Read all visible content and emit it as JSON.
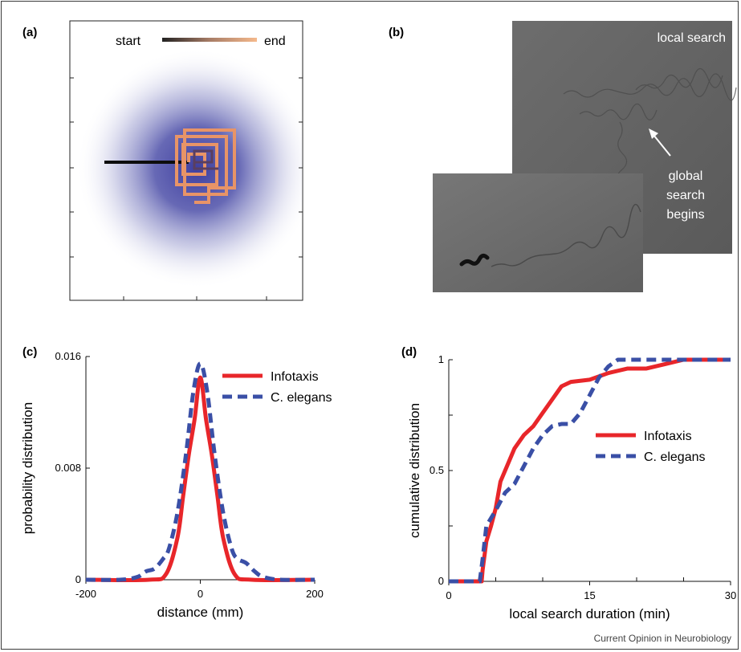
{
  "panels": {
    "a": {
      "label": "(a)",
      "legend_start": "start",
      "legend_end": "end"
    },
    "b": {
      "label": "(b)",
      "local_search_label": "local search",
      "global_search_lines": [
        "global",
        "search",
        "begins"
      ]
    },
    "c": {
      "label": "(c)"
    },
    "d": {
      "label": "(d)"
    }
  },
  "colors": {
    "infotaxis": "#e8262a",
    "c_elegans": "#3a4fa6",
    "odor_blob": "#4d4fa8",
    "trajectory_end": "#f5b98c",
    "trajectory_start": "#111111"
  },
  "chart_data": [
    {
      "type": "line",
      "panel": "c",
      "xlabel": "distance (mm)",
      "ylabel": "probability distribution",
      "xlim": [
        -200,
        200
      ],
      "ylim": [
        0,
        0.016
      ],
      "x_ticks": [
        "-200",
        "0",
        "200"
      ],
      "y_ticks": [
        "0",
        "0.008",
        "0.016"
      ],
      "legend": "top-right",
      "series": [
        {
          "name": "Infotaxis",
          "style": "solid",
          "x": [
            -200,
            -90,
            -60,
            -40,
            -30,
            -20,
            -10,
            0,
            10,
            20,
            30,
            40,
            60,
            90,
            200
          ],
          "y": [
            0,
            0,
            0.0004,
            0.003,
            0.006,
            0.009,
            0.0115,
            0.0145,
            0.0115,
            0.009,
            0.006,
            0.003,
            0.0004,
            0,
            0
          ]
        },
        {
          "name": "C. elegans",
          "style": "dashed",
          "x": [
            -200,
            -140,
            -110,
            -95,
            -80,
            -65,
            -55,
            -40,
            -25,
            -12,
            0,
            12,
            25,
            40,
            55,
            65,
            80,
            95,
            110,
            140,
            200
          ],
          "y": [
            0,
            0,
            0.0002,
            0.0006,
            0.0008,
            0.0015,
            0.0022,
            0.0048,
            0.009,
            0.0135,
            0.0155,
            0.0135,
            0.009,
            0.0048,
            0.0022,
            0.0015,
            0.0012,
            0.0006,
            0.0002,
            0,
            0
          ]
        }
      ]
    },
    {
      "type": "line",
      "panel": "d",
      "xlabel": "local search duration (min)",
      "ylabel": "cumulative distribution",
      "xlim": [
        0,
        30
      ],
      "ylim": [
        0,
        1
      ],
      "x_ticks": [
        "0",
        "15",
        "30"
      ],
      "y_ticks": [
        "0",
        "0.5",
        "1"
      ],
      "legend": "center-right",
      "series": [
        {
          "name": "Infotaxis",
          "style": "solid",
          "x": [
            0,
            3.5,
            3.6,
            4,
            4.5,
            5,
            5.5,
            6,
            7,
            8,
            9,
            10,
            11,
            12,
            13,
            15,
            17,
            19,
            21,
            23,
            25,
            27,
            30
          ],
          "y": [
            0,
            0,
            0.05,
            0.18,
            0.25,
            0.33,
            0.45,
            0.5,
            0.6,
            0.66,
            0.7,
            0.76,
            0.82,
            0.88,
            0.9,
            0.91,
            0.94,
            0.96,
            0.96,
            0.98,
            1,
            1,
            1
          ]
        },
        {
          "name": "C. elegans",
          "style": "dashed",
          "x": [
            0,
            3.3,
            3.6,
            4,
            5,
            6,
            7,
            8,
            9,
            10,
            11,
            12,
            13,
            14,
            15,
            16,
            17,
            18,
            20,
            22,
            30
          ],
          "y": [
            0,
            0,
            0.1,
            0.25,
            0.32,
            0.4,
            0.44,
            0.52,
            0.6,
            0.66,
            0.7,
            0.71,
            0.71,
            0.76,
            0.84,
            0.92,
            0.97,
            1,
            1,
            1,
            1
          ]
        }
      ]
    }
  ],
  "footer": {
    "credit": "Current Opinion in Neurobiology"
  }
}
